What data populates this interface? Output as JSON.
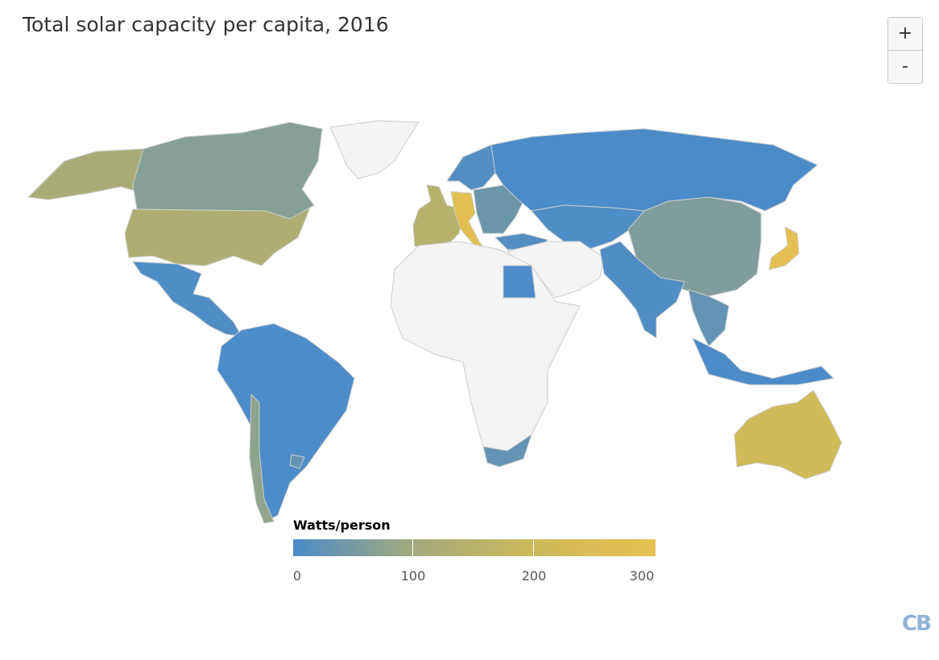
{
  "title": "Total solar capacity per capita, 2016",
  "zoom_controls": {
    "zoom_in": "+",
    "zoom_out": "-"
  },
  "legend": {
    "title": "Watts/person",
    "min": 0,
    "max": 310,
    "ticks": [
      "0",
      "100",
      "200",
      "300"
    ],
    "colors": [
      "#4a8bc9",
      "#a3aa7c",
      "#cdb95a",
      "#e8c050"
    ]
  },
  "no_data_color": "#f4f4f4",
  "logo": "CB",
  "regions": [
    {
      "id": "greenland",
      "value": null
    },
    {
      "id": "canada",
      "value": 70
    },
    {
      "id": "alaska",
      "value": 120
    },
    {
      "id": "usa",
      "value": 130
    },
    {
      "id": "mexico-central-america",
      "value": 5
    },
    {
      "id": "south-america",
      "value": 2
    },
    {
      "id": "chile",
      "value": 80
    },
    {
      "id": "uruguay",
      "value": 30
    },
    {
      "id": "western-europe",
      "value": 150
    },
    {
      "id": "germany-italy",
      "value": 290
    },
    {
      "id": "scandinavia",
      "value": 10
    },
    {
      "id": "eastern-europe",
      "value": 40
    },
    {
      "id": "russia",
      "value": 1
    },
    {
      "id": "central-asia",
      "value": 5
    },
    {
      "id": "china",
      "value": 60
    },
    {
      "id": "india-pakistan",
      "value": 7
    },
    {
      "id": "southeast-asia",
      "value": 30
    },
    {
      "id": "japan",
      "value": 300
    },
    {
      "id": "indonesia",
      "value": 1
    },
    {
      "id": "australia",
      "value": 220
    },
    {
      "id": "africa",
      "value": null
    },
    {
      "id": "egypt",
      "value": 2
    },
    {
      "id": "south-africa",
      "value": 30
    },
    {
      "id": "middle-east",
      "value": null
    },
    {
      "id": "turkey",
      "value": 10
    }
  ]
}
